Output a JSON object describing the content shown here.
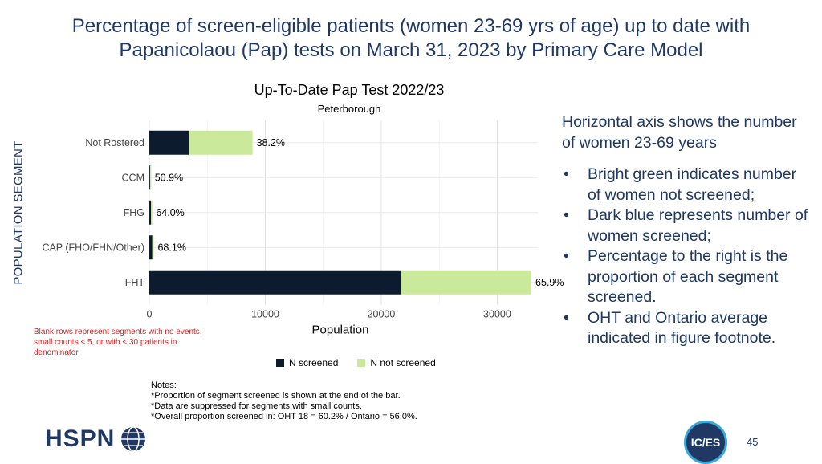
{
  "slide": {
    "title": "Percentage of screen-eligible patients (women 23-69 yrs of age) up to date with Papanicolaou (Pap) tests on March 31, 2023 by Primary Care Model",
    "page_number": "45",
    "blank_rows_note": "Blank rows represent segments with no events, small counts < 5, or with < 30 patients in denominator.",
    "notes": [
      "Notes:",
      "*Proportion of segment screened is shown at the end of the bar.",
      "*Data are suppressed for segments with small counts.",
      "*Overall proportion screened in: OHT 18 = 60.2% / Ontario = 56.0%."
    ],
    "side_text": {
      "intro": "Horizontal axis shows the number of  women 23-69 years",
      "bullets": [
        "Bright green indicates number of women not screened;",
        "Dark blue represents number of women screened;",
        "Percentage to the right is the proportion of each segment screened.",
        "OHT and Ontario average indicated in figure footnote."
      ]
    },
    "logos": {
      "hspn": "HSPN",
      "ices": "IC/ES"
    }
  },
  "chart_data": {
    "type": "bar",
    "orientation": "horizontal",
    "stacked": true,
    "title": "Up-To-Date Pap Test 2022/23",
    "subtitle": "Peterborough",
    "xlabel": "Population",
    "ylabel": "POPULATION SEGMENT",
    "categories": [
      "Not Rostered",
      "CCM",
      "FHG",
      "CAP (FHO/FHN/Other)",
      "FHT"
    ],
    "series": [
      {
        "name": "N screened",
        "values": [
          3400,
          60,
          150,
          260,
          21700
        ],
        "color": "#0d1b2e"
      },
      {
        "name": "N not screened",
        "values": [
          5500,
          60,
          80,
          120,
          11250
        ],
        "color": "#cbe99a"
      }
    ],
    "data_labels": [
      "38.2%",
      "50.9%",
      "64.0%",
      "68.1%",
      "65.9%"
    ],
    "xlim": [
      0,
      33500
    ],
    "xticks": [
      0,
      10000,
      20000,
      30000
    ],
    "xtick_labels": [
      "0",
      "10000",
      "20000",
      "30000"
    ],
    "grid": true,
    "legend_position": "bottom"
  }
}
